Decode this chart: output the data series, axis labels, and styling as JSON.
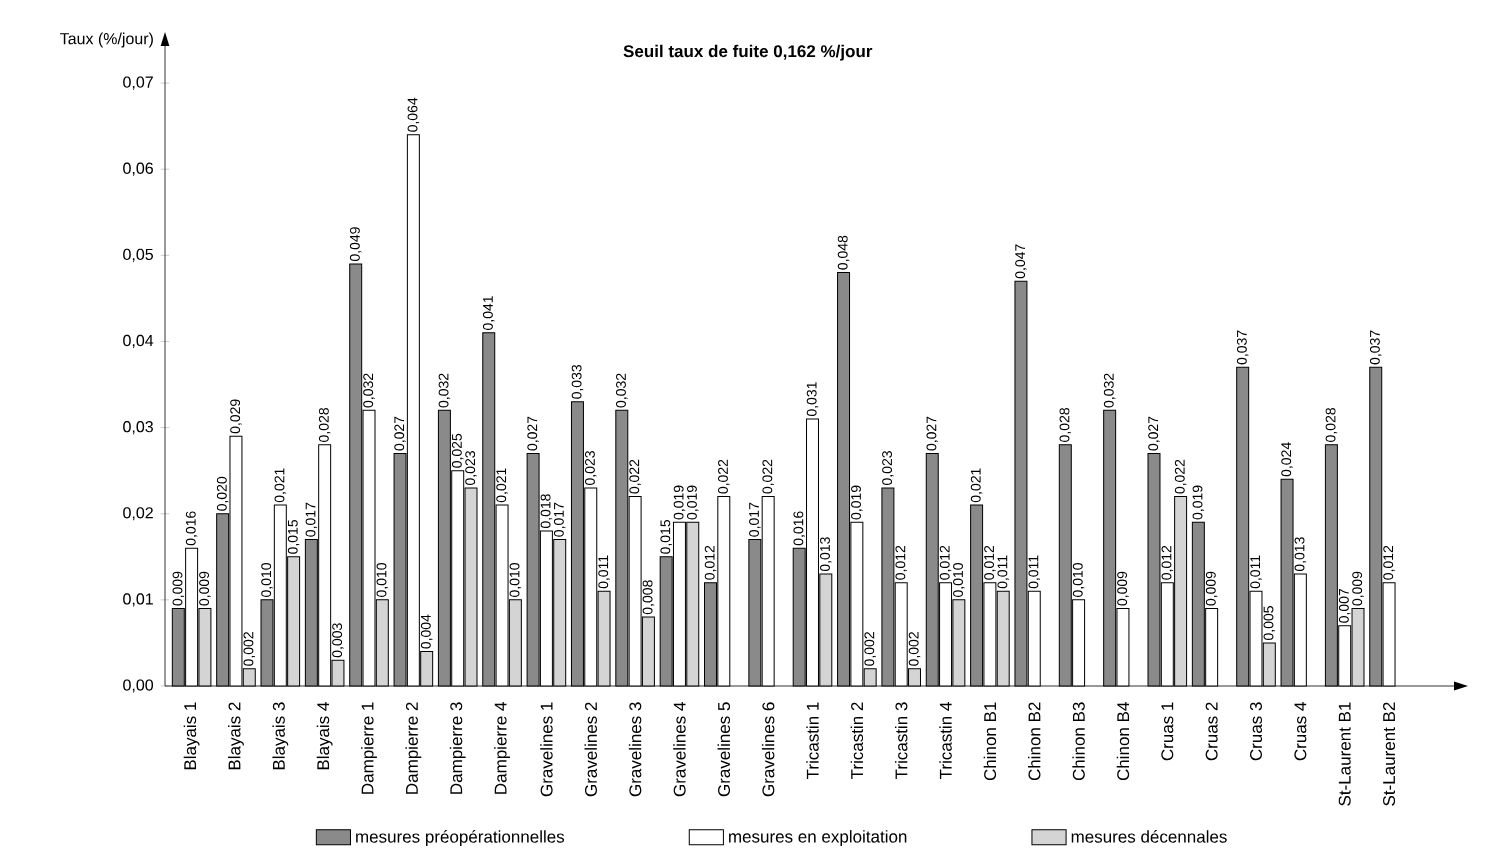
{
  "chart_data": {
    "type": "bar",
    "title": "Seuil taux de fuite 0,162 %/jour",
    "ylabel": "Taux (%/jour)",
    "categories": [
      "Blayais 1",
      "Blayais 2",
      "Blayais 3",
      "Blayais 4",
      "Dampierre 1",
      "Dampierre 2",
      "Dampierre 3",
      "Dampierre 4",
      "Gravelines 1",
      "Gravelines 2",
      "Gravelines 3",
      "Gravelines 4",
      "Gravelines 5",
      "Gravelines 6",
      "Tricastin 1",
      "Tricastin 2",
      "Tricastin 3",
      "Tricastin 4",
      "Chinon B1",
      "Chinon B2",
      "Chinon B3",
      "Chinon B4",
      "Cruas 1",
      "Cruas 2",
      "Cruas 3",
      "Cruas 4",
      "St-Laurent B1",
      "St-Laurent B2"
    ],
    "series": [
      {
        "name": "mesures préopérationnelles",
        "color": "#8a8a8a",
        "values": [
          0.009,
          0.02,
          0.01,
          0.017,
          0.049,
          0.027,
          0.032,
          0.041,
          0.027,
          0.033,
          0.032,
          0.015,
          0.012,
          0.017,
          0.016,
          0.048,
          0.023,
          0.027,
          0.021,
          0.047,
          0.028,
          0.032,
          0.027,
          0.019,
          0.037,
          0.024,
          0.028,
          0.037
        ],
        "value_labels": [
          "0,009",
          "0,020",
          "0,010",
          "0,017",
          "0,049",
          "0,027",
          "0,032",
          "0,041",
          "0,027",
          "0,033",
          "0,032",
          "0,015",
          "0,012",
          "0,017",
          "0,016",
          "0,048",
          "0,023",
          "0,027",
          "0,021",
          "0,047",
          "0,028",
          "0,032",
          "0,027",
          "0,019",
          "0,037",
          "0,024",
          "0,028",
          "0,037"
        ]
      },
      {
        "name": "mesures en exploitation",
        "color": "#ffffff",
        "values": [
          0.016,
          0.029,
          0.021,
          0.028,
          0.032,
          0.064,
          0.025,
          0.021,
          0.018,
          0.023,
          0.022,
          0.019,
          0.022,
          0.022,
          0.031,
          0.019,
          0.012,
          0.012,
          0.012,
          0.011,
          0.01,
          0.009,
          0.012,
          0.009,
          0.011,
          0.013,
          0.007,
          0.012
        ],
        "value_labels": [
          "0,016",
          "0,029",
          "0,021",
          "0,028",
          "0,032",
          "0,064",
          "0,025",
          "0,021",
          "0,018",
          "0,023",
          "0,022",
          "0,019",
          "0,022",
          "0,022",
          "0,031",
          "0,019",
          "0,012",
          "0,012",
          "0,012",
          "0,011",
          "0,010",
          "0,009",
          "0,012",
          "0,009",
          "0,011",
          "0,013",
          "0,007",
          "0,012"
        ]
      },
      {
        "name": "mesures décennales",
        "color": "#d4d4d4",
        "values": [
          0.009,
          0.002,
          0.015,
          0.003,
          0.01,
          0.004,
          0.023,
          0.01,
          0.017,
          0.011,
          0.008,
          0.019,
          null,
          null,
          0.013,
          0.002,
          0.002,
          0.01,
          0.011,
          null,
          null,
          null,
          0.022,
          null,
          0.005,
          null,
          0.009,
          null
        ],
        "value_labels": [
          "0,009",
          "0,002",
          "0,015",
          "0,003",
          "0,010",
          "0,004",
          "0,023",
          "0,010",
          "0,017",
          "0,011",
          "0,008",
          "0,019",
          null,
          null,
          "0,013",
          "0,002",
          "0,002",
          "0,010",
          "0,011",
          null,
          null,
          null,
          "0,022",
          null,
          "0,005",
          null,
          "0,009",
          null
        ]
      }
    ],
    "ylim": [
      0,
      0.075
    ],
    "yticks": [
      {
        "value": 0,
        "label": "0,00"
      },
      {
        "value": 0.01,
        "label": "0,01"
      },
      {
        "value": 0.02,
        "label": "0,02"
      },
      {
        "value": 0.03,
        "label": "0,03"
      },
      {
        "value": 0.04,
        "label": "0,04"
      },
      {
        "value": 0.05,
        "label": "0,05"
      },
      {
        "value": 0.06,
        "label": "0,06"
      },
      {
        "value": 0.07,
        "label": "0,07"
      }
    ],
    "legend": "bottom"
  }
}
